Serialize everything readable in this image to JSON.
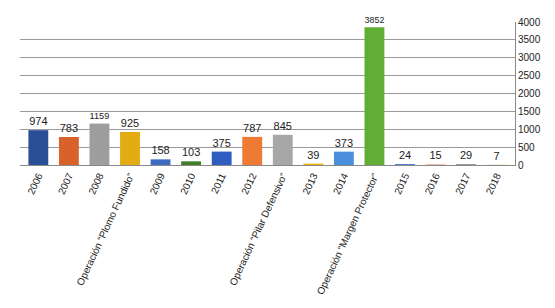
{
  "chart_data": {
    "type": "bar",
    "categories": [
      "2006",
      "2007",
      "2008",
      "Operación “Plomo Fundido”",
      "2009",
      "2010",
      "2011",
      "2012",
      "Operación “Pilar Defensivo”",
      "2013",
      "2014",
      "Operación “Margen Protector”",
      "2015",
      "2016",
      "2017",
      "2018"
    ],
    "values": [
      974,
      783,
      1159,
      925,
      158,
      103,
      375,
      787,
      845,
      39,
      373,
      3852,
      24,
      15,
      29,
      7
    ],
    "colors": [
      "#2a4f97",
      "#d9622b",
      "#9e9e9e",
      "#e3ac12",
      "#3b6cc2",
      "#3f7f2a",
      "#2f5cbf",
      "#ee7a33",
      "#a7a7a7",
      "#efb30c",
      "#4a8fdc",
      "#62ad33",
      "#3b6cc2",
      "#e58a66",
      "#9a9a9a",
      "#eba567"
    ],
    "ylim": [
      0,
      4000
    ],
    "yticks": [
      0,
      500,
      1000,
      1500,
      2000,
      2500,
      3000,
      3500,
      4000
    ],
    "grid": true,
    "data_labels": true
  }
}
